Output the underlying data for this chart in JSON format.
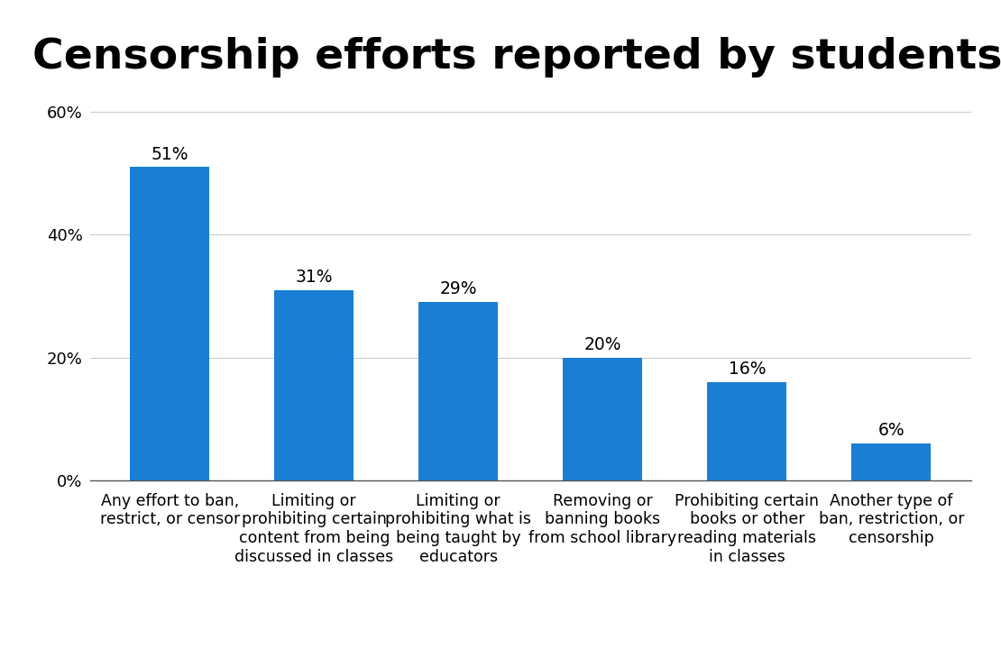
{
  "title": "Censorship efforts reported by students",
  "categories": [
    "Any effort to ban,\nrestrict, or censor",
    "Limiting or\nprohibiting certain\ncontent from being\ndiscussed in classes",
    "Limiting or\nprohibiting what is\nbeing taught by\neducators",
    "Removing or\nbanning books\nfrom school library",
    "Prohibiting certain\nbooks or other\nreading materials\nin classes",
    "Another type of\nban, restriction, or\ncensorship"
  ],
  "values": [
    51,
    31,
    29,
    20,
    16,
    6
  ],
  "bar_color": "#1a7fd4",
  "background_color": "#ffffff",
  "ylim": [
    0,
    63
  ],
  "yticks": [
    0,
    20,
    40,
    60
  ],
  "ytick_labels": [
    "0%",
    "20%",
    "40%",
    "60%"
  ],
  "title_fontsize": 34,
  "label_fontsize": 12.5,
  "value_fontsize": 13.5,
  "tick_fontsize": 13,
  "grid_color": "#cccccc",
  "bar_width": 0.55
}
